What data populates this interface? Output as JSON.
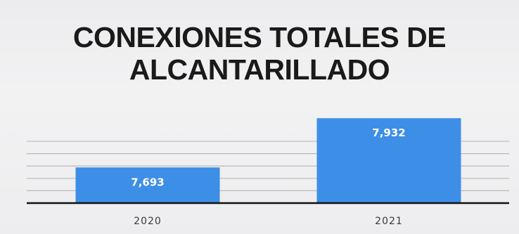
{
  "chart_data": {
    "type": "bar",
    "title_lines": [
      "CONEXIONES TOTALES DE",
      "ALCANTARILLADO"
    ],
    "categories": [
      "2020",
      "2021"
    ],
    "values": [
      7693,
      7932
    ],
    "value_labels": [
      "7,693",
      "7,932"
    ],
    "xlabel": "",
    "ylabel": "",
    "ylim": [
      7520,
      7960
    ],
    "grid": true,
    "bar_color": "#3d8ee6",
    "axis_color": "#111111",
    "grid_color": "#b9b9bb"
  }
}
